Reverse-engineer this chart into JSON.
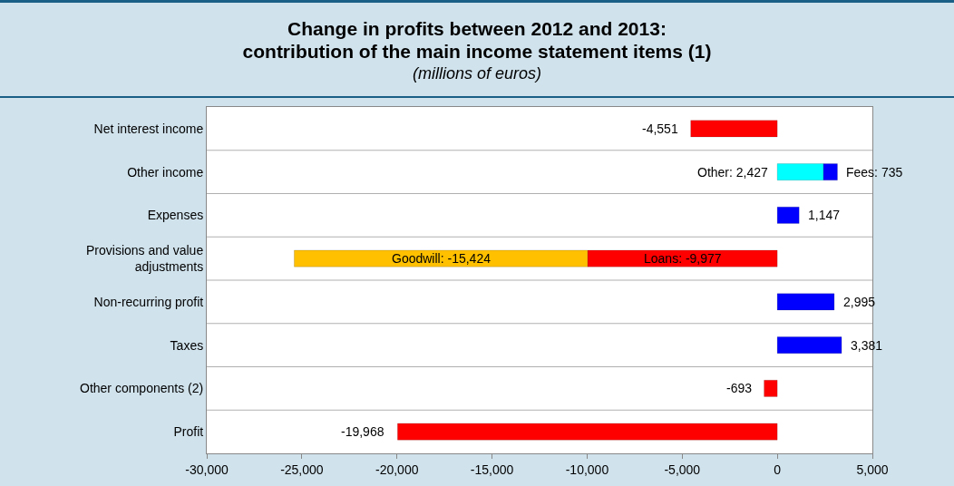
{
  "chart_data": {
    "type": "bar",
    "orientation": "horizontal",
    "stacked": true,
    "title": "Change in profits between 2012 and 2013:\ncontribution of the main income statement items (1)",
    "subtitle": "(millions of euros)",
    "categories": [
      "Net interest income",
      "Other income",
      "Expenses",
      "Provisions and value adjustments",
      "Non-recurring profit",
      "Taxes",
      "Other components (2)",
      "Profit"
    ],
    "series": [
      {
        "colors": [
          "#ff0000",
          "#00ffff",
          "#0000ff",
          "#ff0000",
          "#0000ff",
          "#0000ff",
          "#ff0000",
          "#ff0000"
        ],
        "values": [
          -4551,
          2427,
          1147,
          -9977,
          2995,
          3381,
          -693,
          -19968
        ],
        "value_labels": [
          "-4,551",
          "Other: 2,427",
          "1,147",
          "Loans: -9,977",
          "2,995",
          "3,381",
          "-693",
          "-19,968"
        ]
      },
      {
        "colors": [
          null,
          "#0000ff",
          null,
          "#ffc000",
          null,
          null,
          null,
          null
        ],
        "values": [
          null,
          735,
          null,
          -15424,
          null,
          null,
          null,
          null
        ],
        "value_labels": [
          null,
          "Fees: 735",
          null,
          "Goodwill: -15,424",
          null,
          null,
          null,
          null
        ]
      }
    ],
    "xlim": [
      -30000,
      5000
    ],
    "xticks": [
      {
        "value": -30000,
        "label": "-30,000"
      },
      {
        "value": -25000,
        "label": "-25,000"
      },
      {
        "value": -20000,
        "label": "-20,000"
      },
      {
        "value": -15000,
        "label": "-15,000"
      },
      {
        "value": -10000,
        "label": "-10,000"
      },
      {
        "value": -5000,
        "label": "-5,000"
      },
      0,
      {
        "value": 5000,
        "label": "5,000"
      }
    ],
    "grid": "y",
    "legend": false
  }
}
